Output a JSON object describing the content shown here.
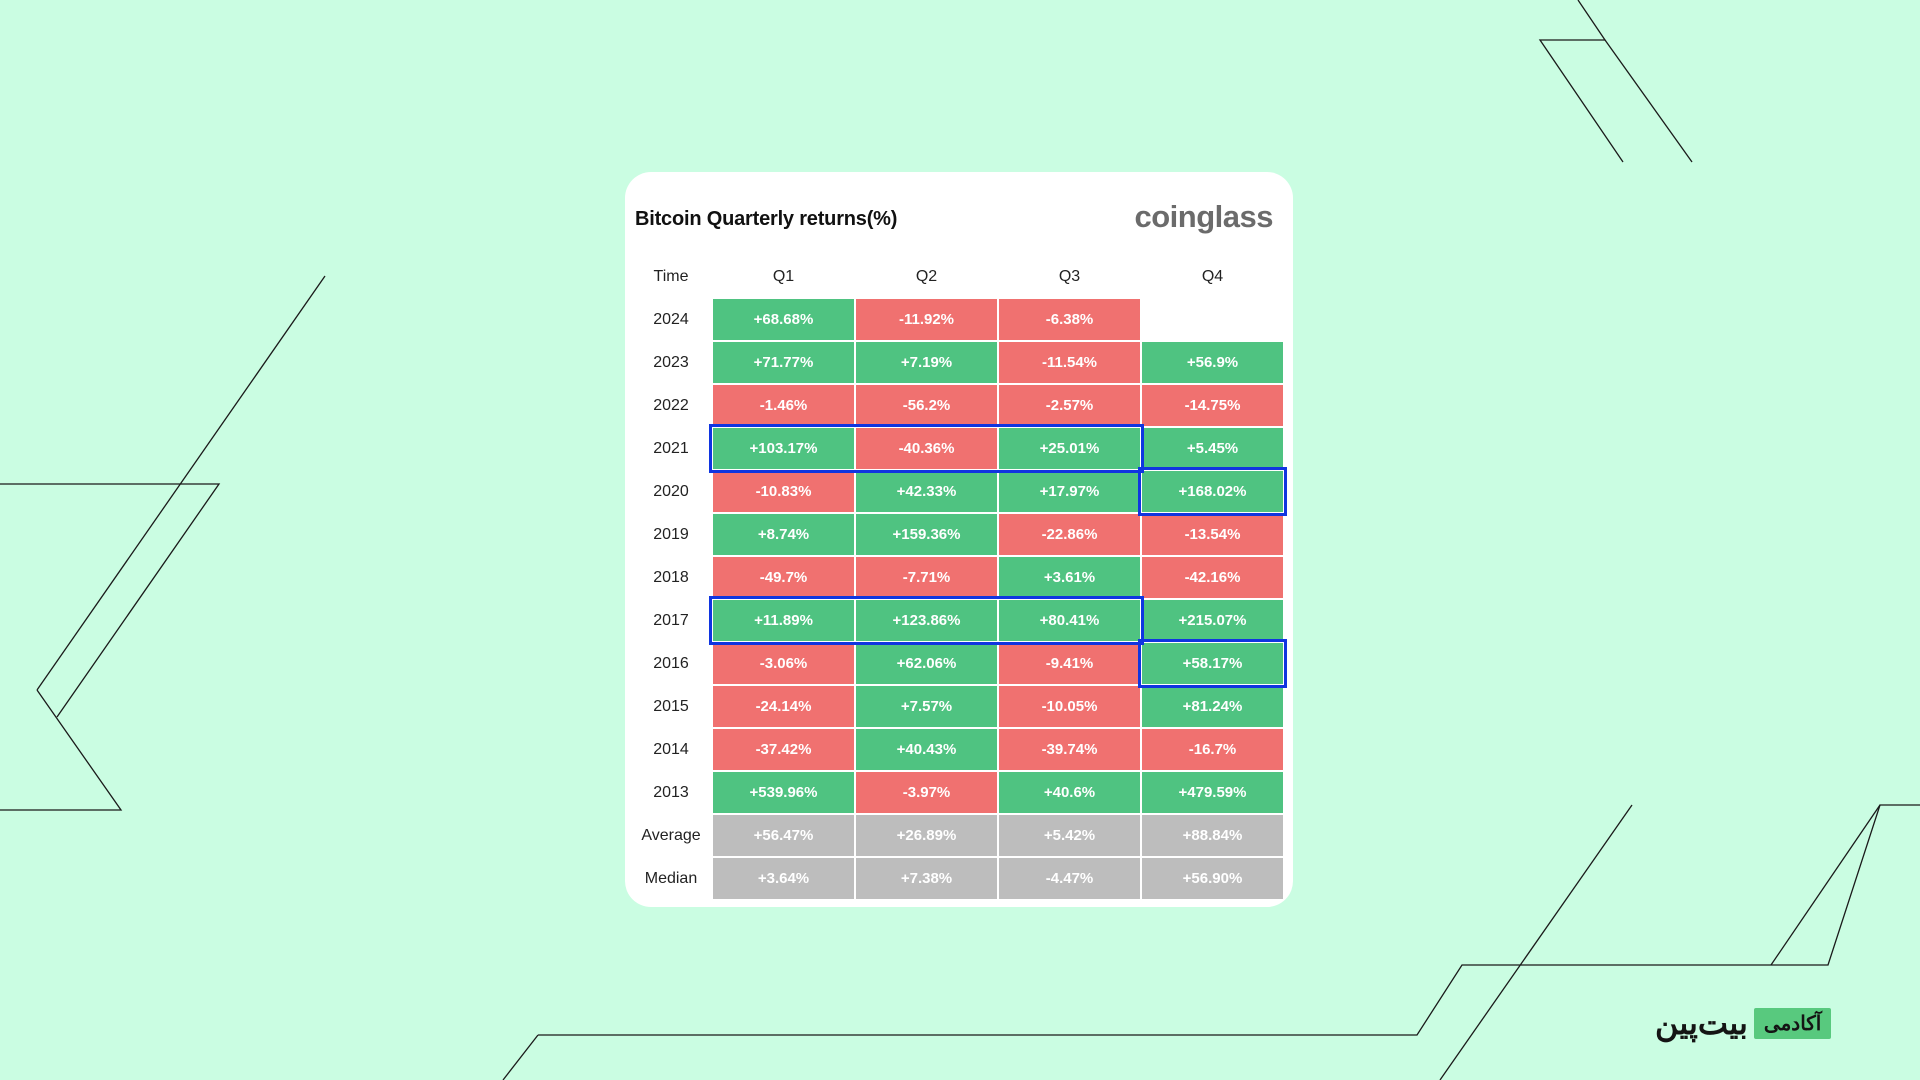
{
  "card": {
    "title": "Bitcoin Quarterly returns(%)",
    "brand": "coinglass"
  },
  "chart_data": {
    "type": "table",
    "title": "Bitcoin Quarterly returns(%)",
    "columns": [
      "Time",
      "Q1",
      "Q2",
      "Q3",
      "Q4"
    ],
    "rows": [
      {
        "label": "2024",
        "values": [
          "+68.68%",
          "-11.92%",
          "-6.38%",
          ""
        ],
        "kind": "year"
      },
      {
        "label": "2023",
        "values": [
          "+71.77%",
          "+7.19%",
          "-11.54%",
          "+56.9%"
        ],
        "kind": "year"
      },
      {
        "label": "2022",
        "values": [
          "-1.46%",
          "-56.2%",
          "-2.57%",
          "-14.75%"
        ],
        "kind": "year"
      },
      {
        "label": "2021",
        "values": [
          "+103.17%",
          "-40.36%",
          "+25.01%",
          "+5.45%"
        ],
        "kind": "year"
      },
      {
        "label": "2020",
        "values": [
          "-10.83%",
          "+42.33%",
          "+17.97%",
          "+168.02%"
        ],
        "kind": "year"
      },
      {
        "label": "2019",
        "values": [
          "+8.74%",
          "+159.36%",
          "-22.86%",
          "-13.54%"
        ],
        "kind": "year"
      },
      {
        "label": "2018",
        "values": [
          "-49.7%",
          "-7.71%",
          "+3.61%",
          "-42.16%"
        ],
        "kind": "year"
      },
      {
        "label": "2017",
        "values": [
          "+11.89%",
          "+123.86%",
          "+80.41%",
          "+215.07%"
        ],
        "kind": "year"
      },
      {
        "label": "2016",
        "values": [
          "-3.06%",
          "+62.06%",
          "-9.41%",
          "+58.17%"
        ],
        "kind": "year"
      },
      {
        "label": "2015",
        "values": [
          "-24.14%",
          "+7.57%",
          "-10.05%",
          "+81.24%"
        ],
        "kind": "year"
      },
      {
        "label": "2014",
        "values": [
          "-37.42%",
          "+40.43%",
          "-39.74%",
          "-16.7%"
        ],
        "kind": "year"
      },
      {
        "label": "2013",
        "values": [
          "+539.96%",
          "-3.97%",
          "+40.6%",
          "+479.59%"
        ],
        "kind": "year"
      },
      {
        "label": "Average",
        "values": [
          "+56.47%",
          "+26.89%",
          "+5.42%",
          "+88.84%"
        ],
        "kind": "summary"
      },
      {
        "label": "Median",
        "values": [
          "+3.64%",
          "+7.38%",
          "-4.47%",
          "+56.90%"
        ],
        "kind": "summary"
      }
    ],
    "highlights": [
      {
        "row": "2021",
        "columns": [
          "Q1",
          "Q2",
          "Q3"
        ]
      },
      {
        "row": "2017",
        "columns": [
          "Q1",
          "Q2",
          "Q3"
        ]
      },
      {
        "row": "2020",
        "columns": [
          "Q4"
        ]
      },
      {
        "row": "2016",
        "columns": [
          "Q4"
        ]
      }
    ],
    "colors": {
      "positive": "#4fc381",
      "negative": "#f07170",
      "summary": "#bdbdbd",
      "highlight": "#1035e0"
    }
  },
  "logo": {
    "main": "بیت‌پین",
    "tag": "آکادمی"
  },
  "colors": {
    "background": "#cafde2",
    "card": "#ffffff",
    "lines": "#1a1a1a"
  }
}
